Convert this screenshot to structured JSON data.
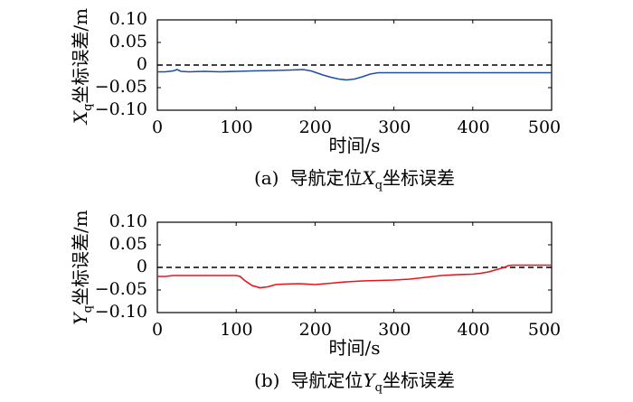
{
  "chart_data": [
    {
      "type": "line",
      "panel_label": "(a)",
      "caption_prefix": "导航定位",
      "caption_var": "X",
      "caption_sub": "q",
      "caption_suffix": "坐标误差",
      "ylabel_var": "X",
      "ylabel_sub": "q",
      "ylabel_text": "坐标误差/m",
      "xlabel": "时间/s",
      "xlim": [
        0,
        500
      ],
      "ylim": [
        -0.1,
        0.1
      ],
      "xticks": [
        0,
        100,
        200,
        300,
        400,
        500
      ],
      "xtick_labels": [
        "0",
        "100",
        "200",
        "300",
        "400",
        "500"
      ],
      "yticks": [
        -0.1,
        -0.05,
        0,
        0.05,
        0.1
      ],
      "ytick_labels": [
        "−0.10",
        "−0.05",
        "0",
        "0.05",
        "0.10"
      ],
      "reference_line": {
        "y": 0,
        "style": "dashed",
        "color": "#000000"
      },
      "series": [
        {
          "color": "#1f4ea6",
          "x": [
            0,
            10,
            20,
            25,
            30,
            40,
            60,
            80,
            100,
            120,
            150,
            170,
            185,
            195,
            200,
            210,
            220,
            230,
            240,
            250,
            260,
            270,
            280,
            300,
            350,
            400,
            450,
            500
          ],
          "y": [
            -0.015,
            -0.015,
            -0.013,
            -0.01,
            -0.014,
            -0.015,
            -0.014,
            -0.015,
            -0.014,
            -0.013,
            -0.012,
            -0.011,
            -0.01,
            -0.013,
            -0.016,
            -0.022,
            -0.027,
            -0.031,
            -0.033,
            -0.031,
            -0.026,
            -0.02,
            -0.017,
            -0.017,
            -0.017,
            -0.017,
            -0.017,
            -0.017
          ]
        }
      ]
    },
    {
      "type": "line",
      "panel_label": "(b)",
      "caption_prefix": "导航定位",
      "caption_var": "Y",
      "caption_sub": "q",
      "caption_suffix": "坐标误差",
      "ylabel_var": "Y",
      "ylabel_sub": "q",
      "ylabel_text": "坐标误差/m",
      "xlabel": "时间/s",
      "xlim": [
        0,
        500
      ],
      "ylim": [
        -0.1,
        0.1
      ],
      "xticks": [
        0,
        100,
        200,
        300,
        400,
        500
      ],
      "xtick_labels": [
        "0",
        "100",
        "200",
        "300",
        "400",
        "500"
      ],
      "yticks": [
        -0.1,
        -0.05,
        0,
        0.05,
        0.1
      ],
      "ytick_labels": [
        "−0.10",
        "−0.05",
        "0",
        "0.05",
        "0.10"
      ],
      "reference_line": {
        "y": 0,
        "style": "dashed",
        "color": "#000000"
      },
      "series": [
        {
          "color": "#e8141b",
          "x": [
            0,
            10,
            20,
            40,
            60,
            80,
            100,
            105,
            110,
            120,
            130,
            140,
            150,
            160,
            180,
            200,
            220,
            240,
            260,
            280,
            300,
            320,
            340,
            360,
            380,
            400,
            410,
            420,
            430,
            440,
            445,
            450,
            470,
            500
          ],
          "y": [
            -0.02,
            -0.02,
            -0.018,
            -0.018,
            -0.018,
            -0.018,
            -0.018,
            -0.02,
            -0.028,
            -0.04,
            -0.045,
            -0.043,
            -0.038,
            -0.037,
            -0.036,
            -0.038,
            -0.035,
            -0.032,
            -0.03,
            -0.029,
            -0.028,
            -0.026,
            -0.022,
            -0.018,
            -0.016,
            -0.015,
            -0.013,
            -0.01,
            -0.005,
            0.0,
            0.004,
            0.005,
            0.005,
            0.005
          ]
        }
      ]
    }
  ]
}
